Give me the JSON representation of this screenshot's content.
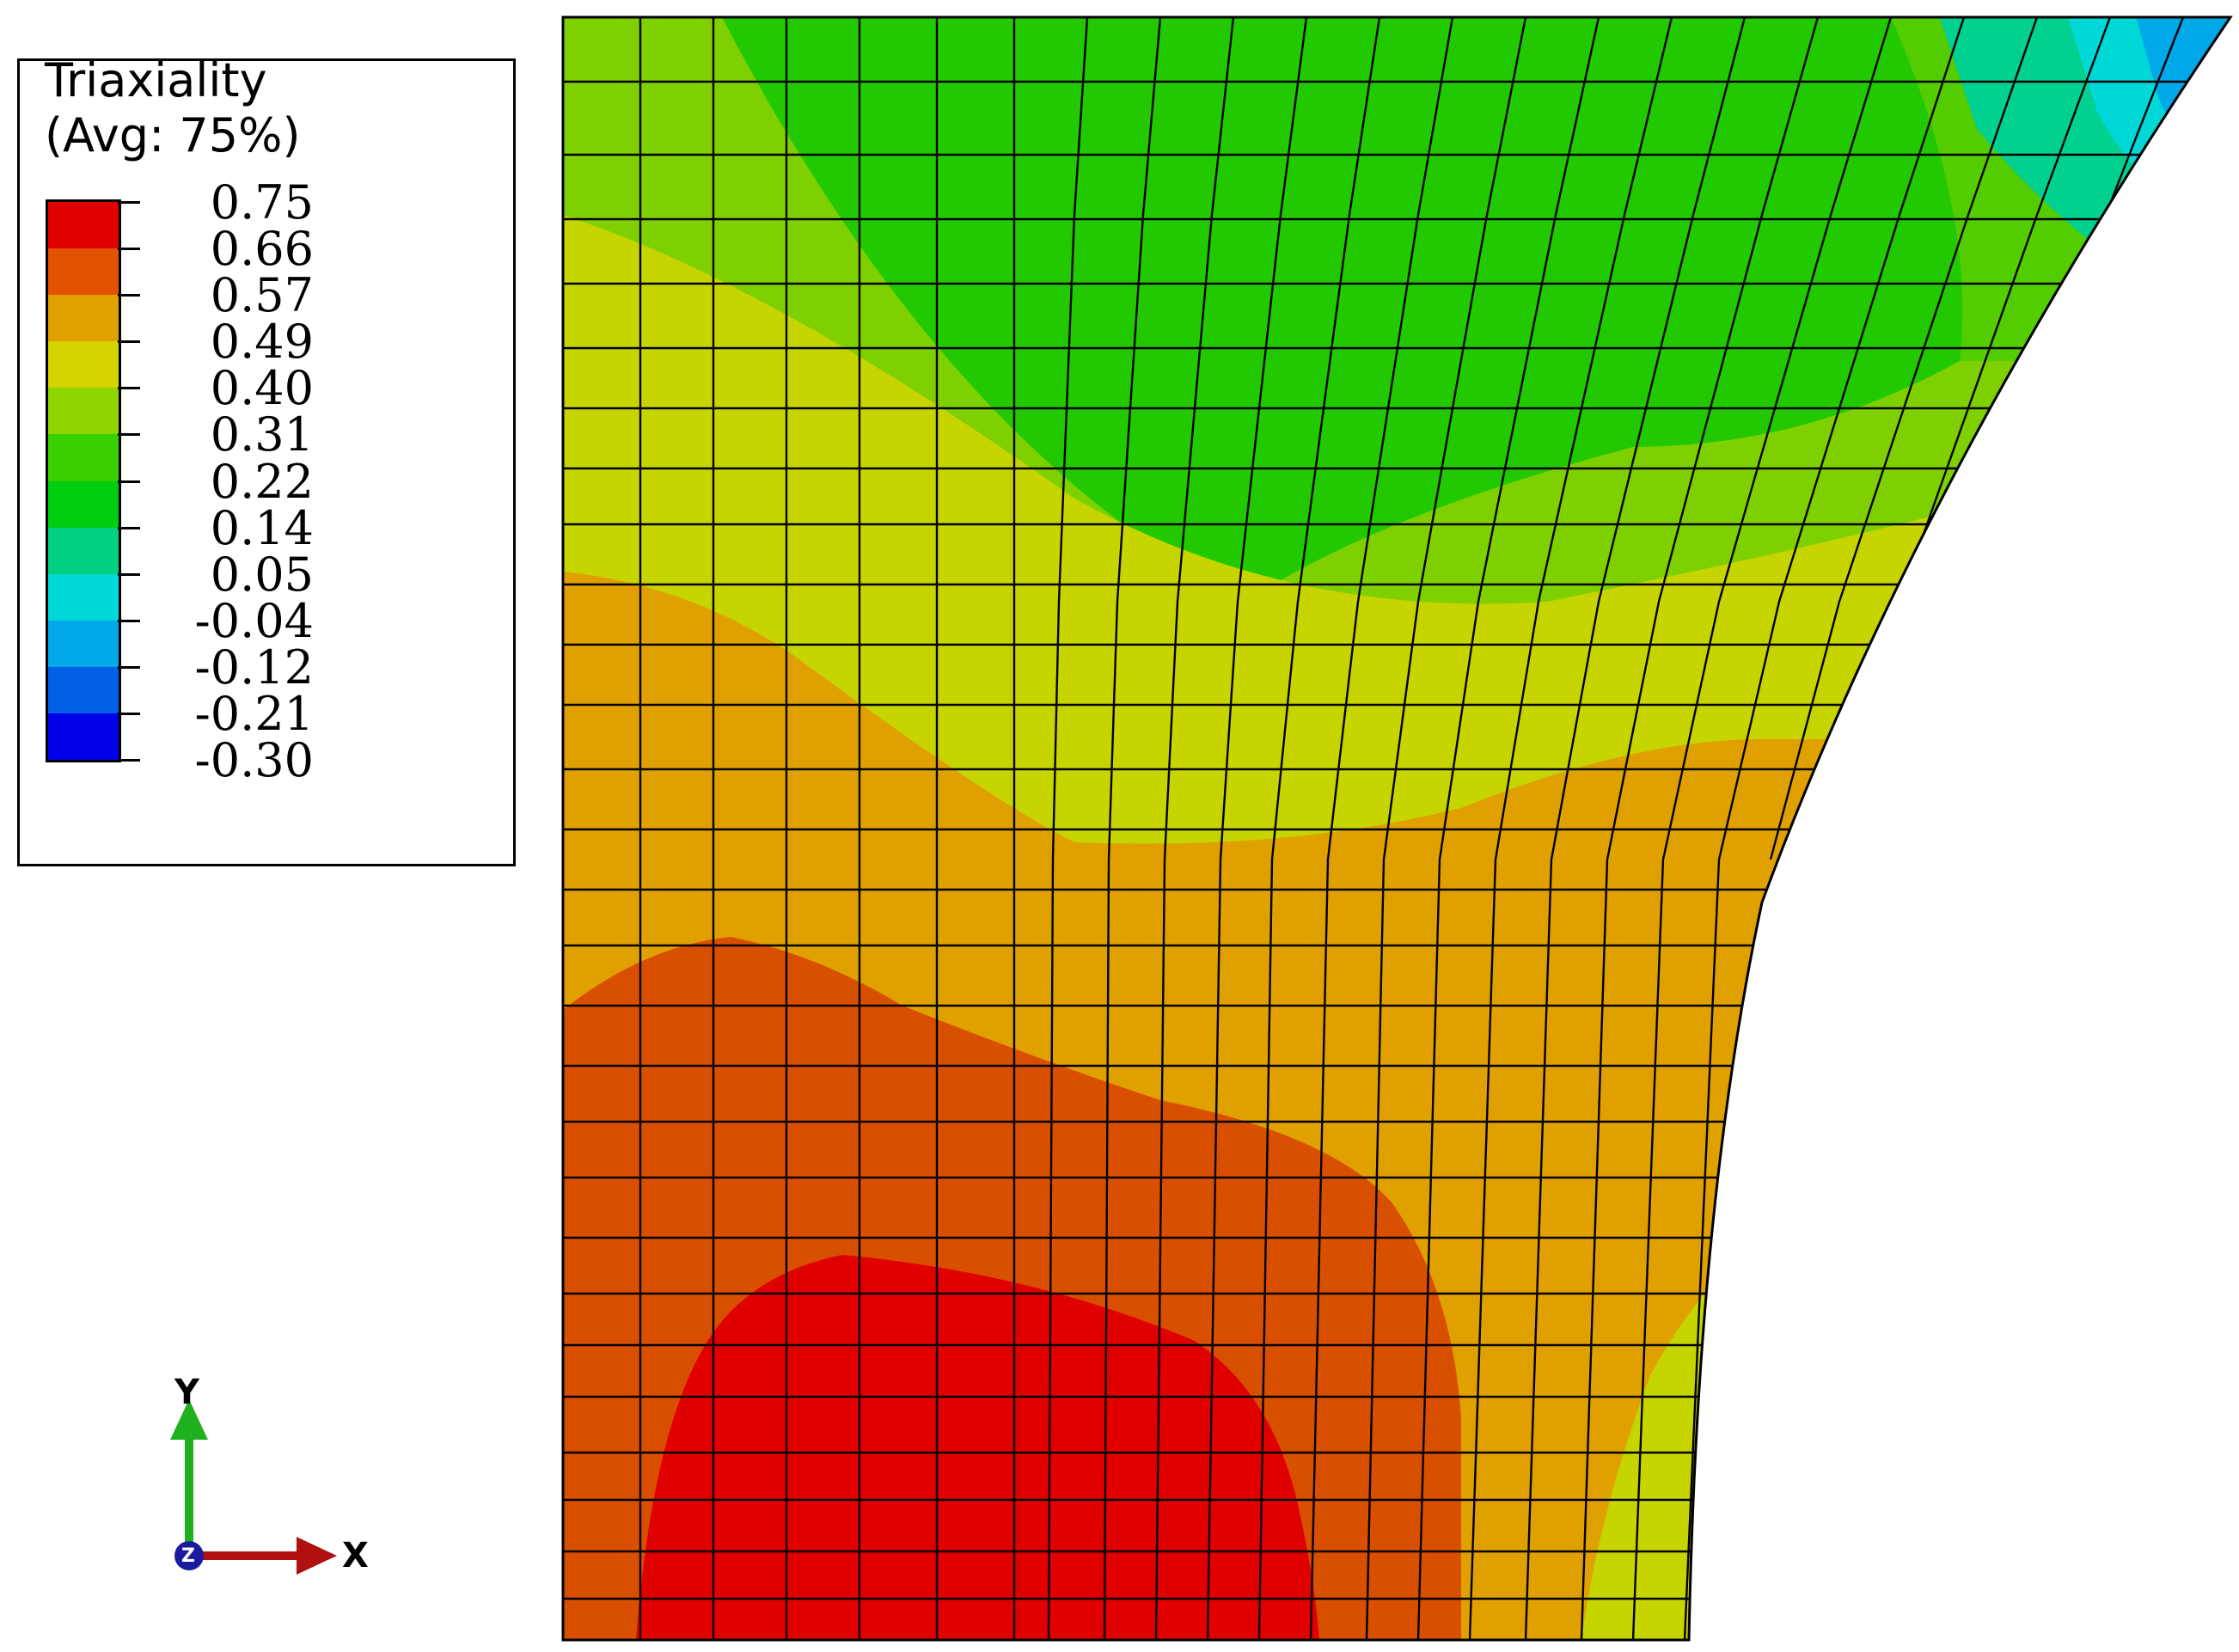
{
  "legend": {
    "title": "Triaxiality",
    "subtitle": "(Avg: 75%)",
    "levels": [
      "0.75",
      "0.66",
      "0.57",
      "0.49",
      "0.40",
      "0.31",
      "0.22",
      "0.14",
      "0.05",
      "-0.04",
      "-0.12",
      "-0.21",
      "-0.30"
    ],
    "band_colors": [
      "#e00000",
      "#e35200",
      "#e0a000",
      "#d6d400",
      "#8fd600",
      "#38d000",
      "#00cc10",
      "#00d080",
      "#00d8d8",
      "#00a8e8",
      "#0060e8",
      "#0000e8"
    ]
  },
  "triad": {
    "y_label": "Y",
    "x_label": "X",
    "origin_label": "Z",
    "y_color": "#1fb01f",
    "x_color": "#b01010",
    "z_color": "#1a1aa0"
  }
}
